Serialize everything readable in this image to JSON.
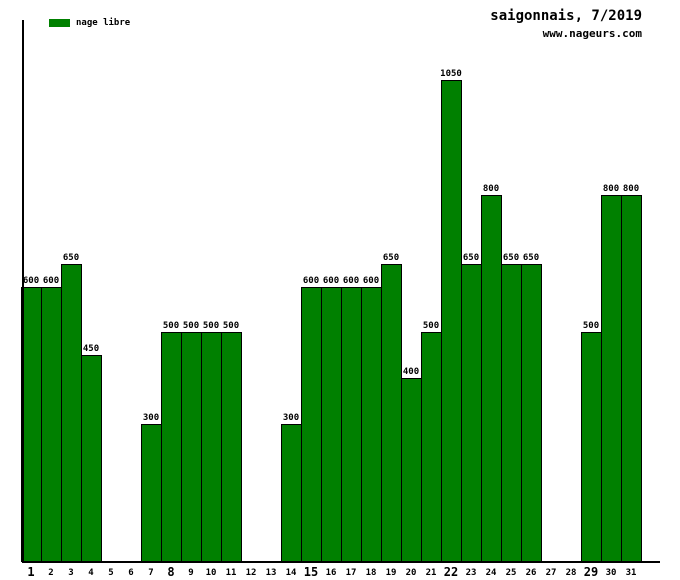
{
  "header": {
    "title": "saigonnais, 7/2019",
    "subtitle": "www.nageurs.com"
  },
  "legend": {
    "label": "nage libre",
    "color": "#008000"
  },
  "chart_data": {
    "type": "bar",
    "title": "saigonnais, 7/2019",
    "watermark": "www.nageurs.com",
    "series_name": "nage libre",
    "bar_color": "#008000",
    "categories": [
      1,
      2,
      3,
      4,
      5,
      6,
      7,
      8,
      9,
      10,
      11,
      12,
      13,
      14,
      15,
      16,
      17,
      18,
      19,
      20,
      21,
      22,
      23,
      24,
      25,
      26,
      27,
      28,
      29,
      30,
      31
    ],
    "values": [
      600,
      600,
      650,
      450,
      null,
      null,
      300,
      500,
      500,
      500,
      500,
      null,
      null,
      300,
      600,
      600,
      600,
      600,
      650,
      400,
      500,
      1050,
      650,
      800,
      650,
      650,
      null,
      null,
      500,
      800,
      800
    ],
    "emphasized_categories": [
      1,
      8,
      15,
      22,
      29
    ],
    "value_labels_shown": true,
    "xlabel": "",
    "ylabel": "",
    "ylim": [
      0,
      1180
    ],
    "grid": false,
    "legend_position": "top-left"
  }
}
